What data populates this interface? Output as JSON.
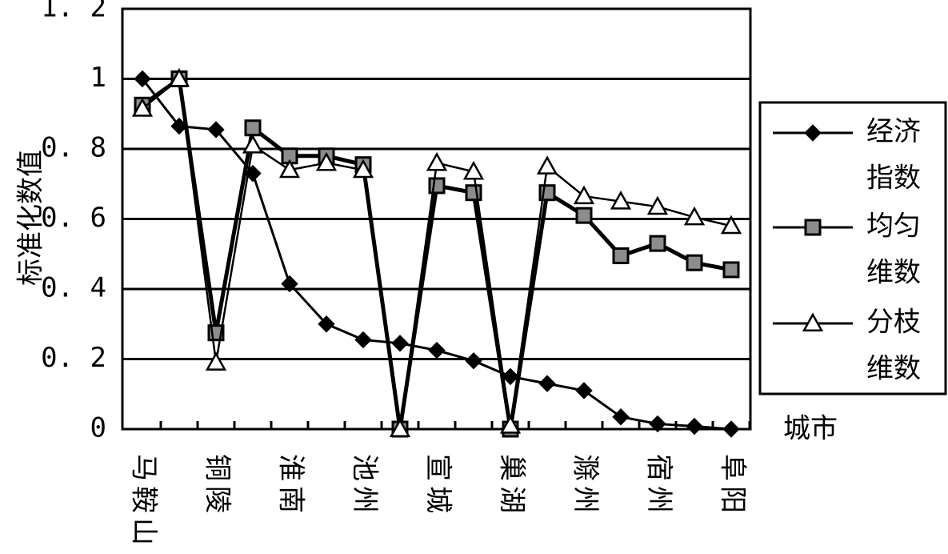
{
  "chart_data": {
    "type": "line",
    "ylabel": "标准化数值",
    "xlabel": "城市",
    "ylim": [
      0,
      1.2
    ],
    "yticks": [
      "0",
      "0.2",
      "0.4",
      "0.6",
      "0.8",
      "1",
      "1.2"
    ],
    "grid": "horizontal",
    "legend_position": "right",
    "x_tick_labels": [
      "马鞍山",
      "铜陵",
      "淮南",
      "池州",
      "宣城",
      "巢湖",
      "滁州",
      "宿州",
      "阜阳"
    ],
    "series": [
      {
        "name": "经济指数",
        "name_lines": [
          "经济",
          "指数"
        ],
        "marker": "diamond",
        "values": [
          1.0,
          0.865,
          0.855,
          0.73,
          0.415,
          0.3,
          0.255,
          0.245,
          0.225,
          0.195,
          0.15,
          0.13,
          0.11,
          0.035,
          0.015,
          0.008,
          0.0
        ]
      },
      {
        "name": "均匀维数",
        "name_lines": [
          "均匀",
          "维数"
        ],
        "marker": "square",
        "values": [
          0.925,
          1.0,
          0.275,
          0.86,
          0.78,
          0.78,
          0.755,
          0.0,
          0.695,
          0.675,
          0.0,
          0.675,
          0.61,
          0.495,
          0.53,
          0.475,
          0.455
        ]
      },
      {
        "name": "分枝维数",
        "name_lines": [
          "分枝",
          "维数"
        ],
        "marker": "triangle",
        "values": [
          0.915,
          1.0,
          0.19,
          0.81,
          0.74,
          0.76,
          0.74,
          0.0,
          0.76,
          0.735,
          0.01,
          0.75,
          0.665,
          0.65,
          0.635,
          0.605,
          0.58
        ]
      }
    ]
  }
}
